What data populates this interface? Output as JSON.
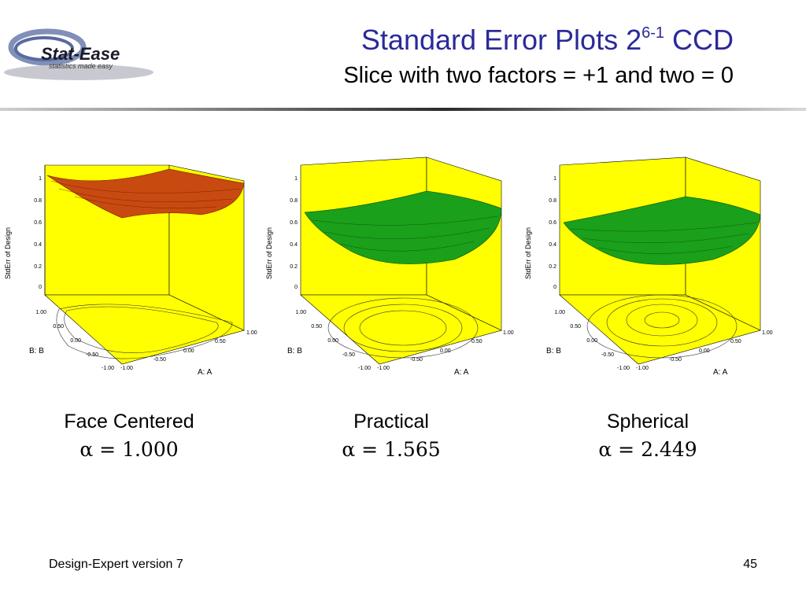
{
  "logo": {
    "text": "Stat-Ease",
    "tagline": "statistics made easy"
  },
  "header": {
    "title_main": "Standard Error Plots 2",
    "title_sup": "6-1",
    "title_tail": " CCD",
    "subtitle": "Slice with two factors = +1 and two = 0"
  },
  "plots": [
    {
      "ylabel": "StdErr of Design",
      "z_ticks": [
        "1",
        "0.8",
        "0.6",
        "0.4",
        "0.2",
        "0"
      ],
      "b_ticks": [
        "1.00",
        "0.50",
        "0.00",
        "-0.50",
        "-1.00"
      ],
      "a_ticks": [
        "-1.00",
        "-0.50",
        "0.00",
        "0.50",
        "1.00"
      ],
      "b_axis": "B: B",
      "a_axis": "A: A",
      "surface_color": "#c84a10",
      "caption_name": "Face Centered",
      "caption_alpha": "α = 1.000"
    },
    {
      "ylabel": "StdErr of Design",
      "z_ticks": [
        "1",
        "0.8",
        "0.6",
        "0.4",
        "0.2",
        "0"
      ],
      "b_ticks": [
        "1.00",
        "0.50",
        "0.00",
        "-0.50",
        "-1.00"
      ],
      "a_ticks": [
        "-1.00",
        "-0.50",
        "0.00",
        "0.50",
        "1.00"
      ],
      "b_axis": "B: B",
      "a_axis": "A: A",
      "surface_color": "#1aa01a",
      "caption_name": "Practical",
      "caption_alpha": "α = 1.565"
    },
    {
      "ylabel": "StdErr of Design",
      "z_ticks": [
        "1",
        "0.8",
        "0.6",
        "0.4",
        "0.2",
        "0"
      ],
      "b_ticks": [
        "1.00",
        "0.50",
        "0.00",
        "-0.50",
        "-1.00"
      ],
      "a_ticks": [
        "-1.00",
        "-0.50",
        "0.00",
        "0.50",
        "1.00"
      ],
      "b_axis": "B: B",
      "a_axis": "A: A",
      "surface_color": "#1aa01a",
      "caption_name": "Spherical",
      "caption_alpha": "α = 2.449"
    }
  ],
  "footer": {
    "left": "Design-Expert version 7",
    "page": "45"
  }
}
